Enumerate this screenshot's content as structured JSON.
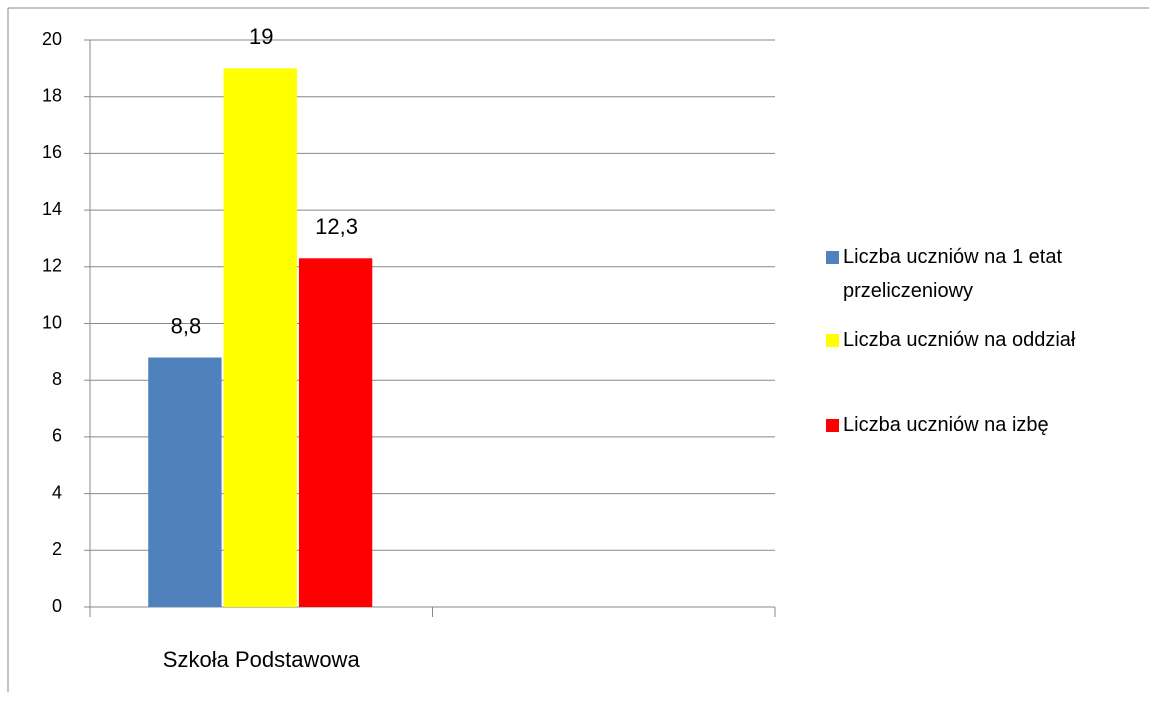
{
  "chart_data": {
    "type": "bar",
    "categories": [
      "Szkoła Podstawowa",
      null
    ],
    "series": [
      {
        "name": "Liczba uczniów na 1 etat przeliczeniowy",
        "color": "#4f81bd",
        "values": [
          8.8,
          null
        ],
        "value_labels": [
          "8,8",
          null
        ]
      },
      {
        "name": "Liczba uczniów na oddział",
        "color": "#ffff00",
        "values": [
          19,
          null
        ],
        "value_labels": [
          "19",
          null
        ]
      },
      {
        "name": "Liczba uczniów na izbę",
        "color": "#ff0000",
        "values": [
          12.3,
          null
        ],
        "value_labels": [
          "12,3",
          null
        ]
      }
    ],
    "ylim": [
      0,
      20
    ],
    "yticks": [
      0,
      2,
      4,
      6,
      8,
      10,
      12,
      14,
      16,
      18,
      20
    ],
    "grid": true,
    "legend": "right"
  }
}
